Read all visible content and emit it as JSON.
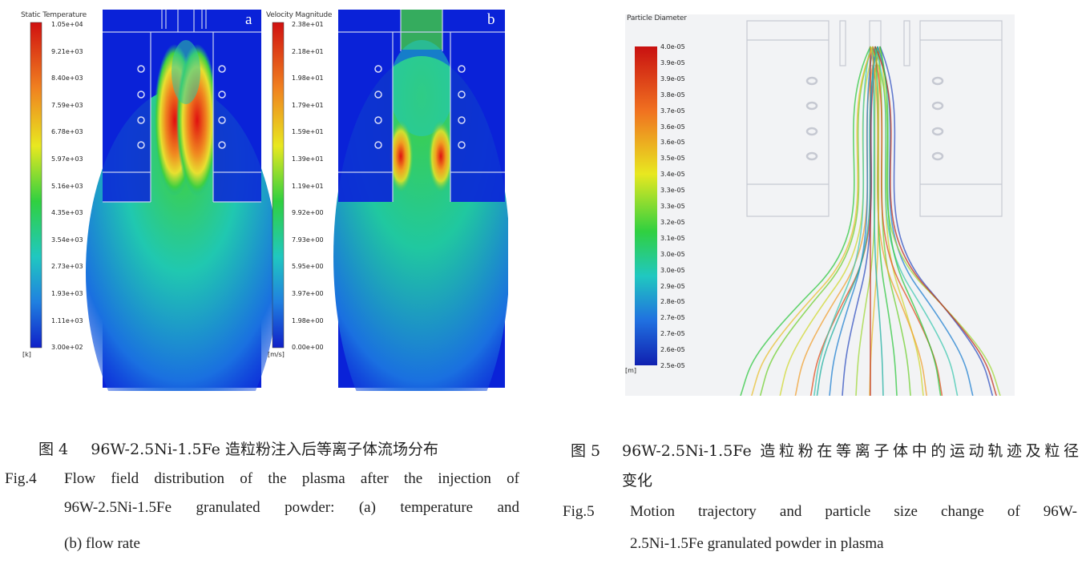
{
  "figure4": {
    "panel_a": {
      "legend_title": "Static Temperature",
      "ticks": [
        "1.05e+04",
        "9.21e+03",
        "8.40e+03",
        "7.59e+03",
        "6.78e+03",
        "5.97e+03",
        "5.16e+03",
        "4.35e+03",
        "3.54e+03",
        "2.73e+03",
        "1.93e+03",
        "1.11e+03",
        "3.00e+02"
      ],
      "unit": "[k]",
      "letter": "a"
    },
    "panel_b": {
      "legend_title": "Velocity Magnitude",
      "ticks": [
        "2.38e+01",
        "2.18e+01",
        "1.98e+01",
        "1.79e+01",
        "1.59e+01",
        "1.39e+01",
        "1.19e+01",
        "9.92e+00",
        "7.93e+00",
        "5.95e+00",
        "3.97e+00",
        "1.98e+00",
        "0.00e+00"
      ],
      "unit": "[m/s]",
      "letter": "b"
    },
    "caption_cn_label": "图 4",
    "caption_cn_text": "96W-2.5Ni-1.5Fe 造粒粉注入后等离子体流场分布",
    "caption_en_label": "Fig.4",
    "caption_en_line1": "Flow field distribution of the plasma after the injection of",
    "caption_en_line2": "96W-2.5Ni-1.5Fe granulated powder: (a) temperature and",
    "caption_en_line3": "(b) flow rate"
  },
  "figure5": {
    "legend_title": "Particle Diameter",
    "ticks": [
      "4.0e-05",
      "3.9e-05",
      "3.9e-05",
      "3.8e-05",
      "3.7e-05",
      "3.6e-05",
      "3.6e-05",
      "3.5e-05",
      "3.4e-05",
      "3.3e-05",
      "3.3e-05",
      "3.2e-05",
      "3.1e-05",
      "3.0e-05",
      "3.0e-05",
      "2.9e-05",
      "2.8e-05",
      "2.7e-05",
      "2.7e-05",
      "2.6e-05",
      "2.5e-05"
    ],
    "unit": "[m]",
    "caption_cn_label": "图 5",
    "caption_cn_line1": "96W-2.5Ni-1.5Fe 造粒粉在等离子体中的运动轨迹及粒径",
    "caption_cn_line2": "变化",
    "caption_en_label": "Fig.5",
    "caption_en_line1": "Motion trajectory and particle size change of 96W-",
    "caption_en_line2": "2.5Ni-1.5Fe granulated powder in plasma"
  },
  "colors": {
    "field_blue": "#0a22d8",
    "background": "#ffffff"
  }
}
